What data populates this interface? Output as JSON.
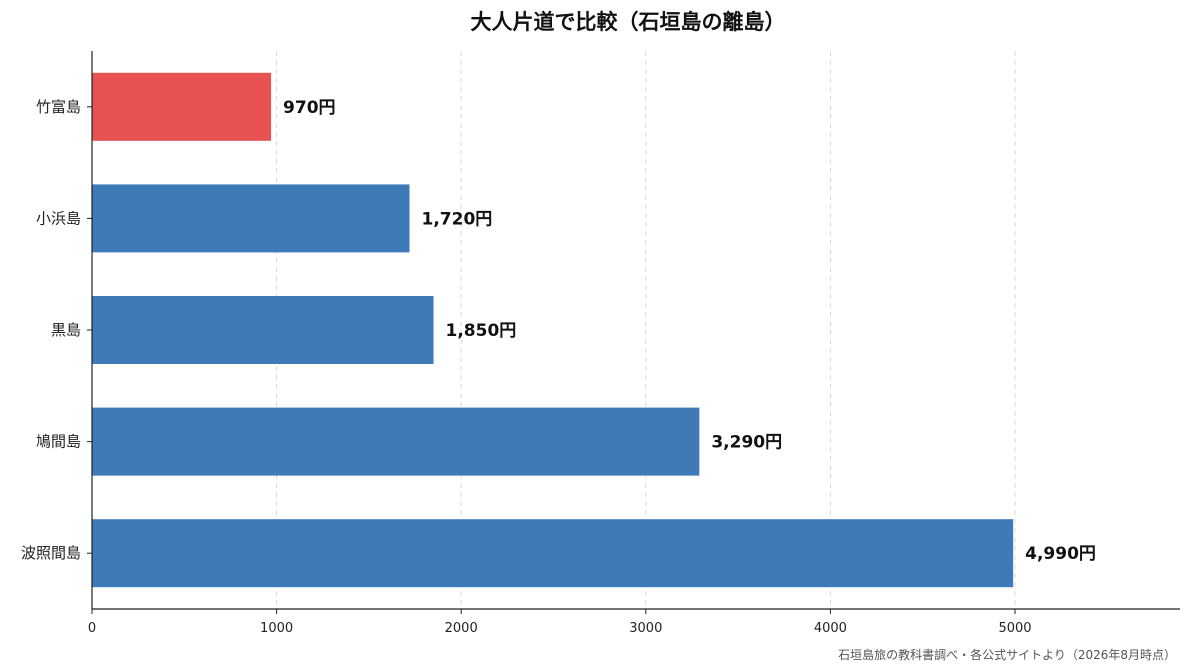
{
  "chart_data": {
    "type": "bar",
    "orientation": "horizontal",
    "title": "大人片道で比較（石垣島の離島）",
    "categories": [
      "竹富島",
      "小浜島",
      "黒島",
      "鳩間島",
      "波照間島"
    ],
    "values": [
      970,
      1720,
      1850,
      3290,
      4990
    ],
    "value_labels": [
      "970円",
      "1,720円",
      "1,850円",
      "3,290円",
      "4,990円"
    ],
    "xlim": [
      0,
      5900
    ],
    "xticks": [
      0,
      1000,
      2000,
      3000,
      4000,
      5000
    ],
    "xlabel": "",
    "ylabel": "",
    "grid": "x, dashed",
    "highlight_index": 0,
    "colors": {
      "bar": "#3f7ab8",
      "highlight": "#e85253"
    }
  },
  "source_note": "石垣島旅の教科書調べ・各公式サイトより（2026年8月時点）"
}
